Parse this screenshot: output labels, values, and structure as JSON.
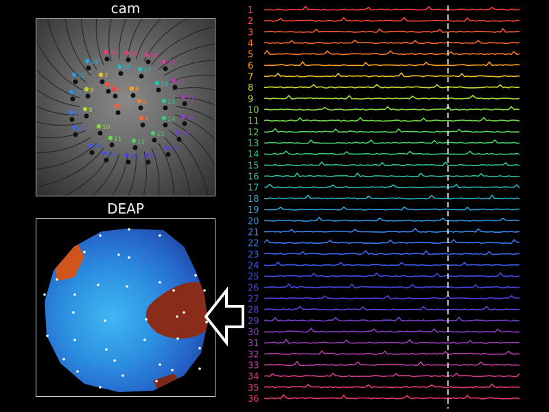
{
  "titles": {
    "cam": "cam",
    "deap": "DEAP"
  },
  "electrodes": [
    "1",
    "2",
    "3",
    "4",
    "5",
    "6",
    "7",
    "8",
    "9",
    "10",
    "11",
    "12",
    "13",
    "14",
    "15",
    "16",
    "17",
    "18",
    "19",
    "20",
    "21",
    "22",
    "23",
    "24",
    "25",
    "26",
    "27",
    "28",
    "29",
    "30",
    "31",
    "32",
    "33",
    "34",
    "35",
    "36"
  ],
  "colors": [
    "#ff3b3b",
    "#ff4d33",
    "#ff5c2b",
    "#ff6a26",
    "#ff7a22",
    "#ffa21c",
    "#f0c220",
    "#c9d42a",
    "#a8d937",
    "#8ad944",
    "#6fd64e",
    "#57d159",
    "#44cf6a",
    "#35cc80",
    "#2ec896",
    "#2ac3aa",
    "#27bcc0",
    "#26b4d2",
    "#28a8e0",
    "#2c98e8",
    "#3188ee",
    "#3478f0",
    "#3868f0",
    "#3b5aee",
    "#3f4ee9",
    "#4546e2",
    "#5040dc",
    "#6040d6",
    "#7540ce",
    "#8a3fc6",
    "#a23ebc",
    "#b83db0",
    "#cc3ca3",
    "#dc3b93",
    "#e83b80",
    "#f03b6c"
  ],
  "marker_time_fraction": 0.72
}
